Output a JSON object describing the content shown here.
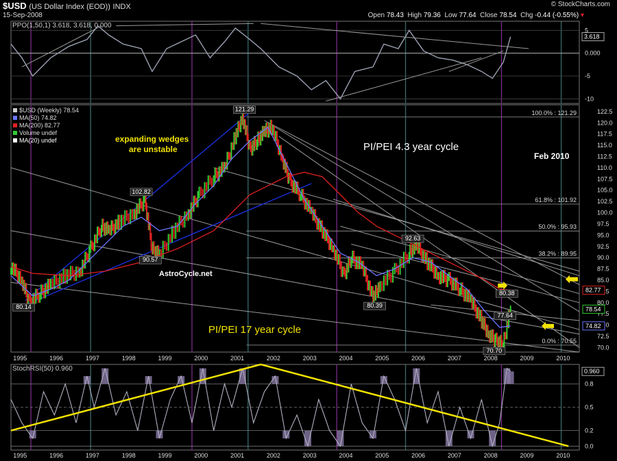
{
  "header": {
    "symbol": "$USD",
    "name": "(US Dollar Index (EOD))",
    "exchange": "INDX",
    "date": "15-Sep-2008",
    "brand": "© StockCharts.com",
    "open_label": "Open",
    "open": "78.43",
    "high_label": "High",
    "high": "79.36",
    "low_label": "Low",
    "low": "77.64",
    "close_label": "Close",
    "close": "78.54",
    "chg_label": "Chg",
    "chg": "-0.44 (-0.55%)"
  },
  "colors": {
    "up": "#33cc33",
    "down": "#dd2222",
    "ma50": "#6a75ff",
    "ma200": "#e02020",
    "trend": "#9a9a9a",
    "wedge": "#1a2fd8",
    "yellow": "#f2e200",
    "cycle_teal": "#3a6a6a",
    "cycle_purple": "#7a2a8a"
  },
  "chart_data": [
    {
      "type": "line",
      "panel": "PPO",
      "legend": "PPO(1,50,1) 3.618, 3.618, 0.000",
      "y_ticks": [
        "5",
        "0.000",
        "-5",
        "-10"
      ],
      "current_label": "3.618",
      "ylim": [
        -11,
        7
      ],
      "series": [
        {
          "name": "PPO(1,50,1)",
          "x": [
            1994.9,
            1995.2,
            1995.5,
            1996.0,
            1996.5,
            1997.0,
            1997.3,
            1997.6,
            1998.0,
            1998.5,
            1998.8,
            1999.2,
            1999.6,
            2000.0,
            2000.4,
            2000.8,
            2001.1,
            2001.5,
            2001.8,
            2002.3,
            2002.8,
            2003.2,
            2003.6,
            2004.0,
            2004.4,
            2004.9,
            2005.2,
            2005.6,
            2005.9,
            2006.3,
            2006.7,
            2007.1,
            2007.5,
            2007.9,
            2008.2,
            2008.5,
            2008.7
          ],
          "values": [
            2.0,
            -1.0,
            -5.0,
            -1.0,
            1.5,
            3.0,
            6.0,
            4.0,
            2.0,
            1.0,
            -4.0,
            1.0,
            2.5,
            4.0,
            -1.0,
            2.5,
            5.5,
            3.0,
            1.0,
            -3.0,
            -5.0,
            -8.0,
            -6.0,
            -10.0,
            -4.0,
            -3.0,
            2.0,
            1.0,
            5.0,
            0.5,
            -1.0,
            -1.5,
            -2.5,
            -4.0,
            -5.5,
            -2.0,
            3.6
          ]
        }
      ]
    },
    {
      "type": "line",
      "panel": "Price",
      "legend": [
        "$USD (Weekly) 78.54",
        "MA(50) 74.82",
        "MA(200) 82.77",
        "Volume undef",
        "MA(20) undef"
      ],
      "x_ticks": [
        "1995",
        "1996",
        "1997",
        "1998",
        "1999",
        "2000",
        "2001",
        "2002",
        "2003",
        "2004",
        "2005",
        "2006",
        "2007",
        "2008",
        "2009",
        "2010"
      ],
      "y_ticks": [
        "122.5",
        "120.0",
        "117.5",
        "115.0",
        "112.5",
        "110.0",
        "107.5",
        "105.0",
        "102.5",
        "100.0",
        "97.5",
        "95.0",
        "92.5",
        "90.0",
        "87.5",
        "85.0",
        "82.5",
        "80.0",
        "77.5",
        "75.0",
        "72.5",
        "70.0"
      ],
      "ylim": [
        69,
        124
      ],
      "series": [
        {
          "name": "$USD (Weekly)",
          "x": [
            1994.9,
            1995.2,
            1995.4,
            1995.7,
            1996.0,
            1996.4,
            1996.8,
            1997.1,
            1997.4,
            1997.6,
            1997.9,
            1998.3,
            1998.6,
            1998.8,
            1999.0,
            1999.4,
            1999.8,
            2000.1,
            2000.5,
            2000.8,
            2001.1,
            2001.3,
            2001.5,
            2001.7,
            2001.9,
            2002.1,
            2002.4,
            2002.6,
            2002.9,
            2003.2,
            2003.5,
            2003.8,
            2004.1,
            2004.3,
            2004.6,
            2004.9,
            2005.1,
            2005.5,
            2005.9,
            2006.1,
            2006.4,
            2006.7,
            2007.0,
            2007.3,
            2007.6,
            2007.9,
            2008.1,
            2008.3,
            2008.5,
            2008.7
          ],
          "values": [
            88,
            85,
            80.1,
            82,
            84,
            86,
            87,
            92,
            97,
            96,
            98,
            100,
            102.8,
            92,
            90.6,
            96,
            100,
            104,
            108,
            110,
            117,
            121.3,
            114,
            116,
            118,
            119,
            112,
            107,
            104,
            100,
            96,
            92,
            86,
            90,
            88,
            81,
            84,
            87,
            91,
            92.6,
            89,
            86,
            85,
            83,
            80.5,
            76,
            73,
            71.5,
            70.7,
            78.54
          ]
        },
        {
          "name": "MA(50)",
          "x": [
            1994.9,
            1995.5,
            1996.0,
            1996.5,
            1997.0,
            1997.5,
            1998.0,
            1998.5,
            1999.0,
            1999.5,
            2000.0,
            2000.5,
            2001.0,
            2001.5,
            2002.0,
            2002.5,
            2003.0,
            2003.5,
            2004.0,
            2004.5,
            2005.0,
            2005.5,
            2006.0,
            2006.5,
            2007.0,
            2007.5,
            2008.0,
            2008.4,
            2008.7
          ],
          "values": [
            86,
            81.5,
            83,
            85,
            89,
            93,
            97,
            99,
            96,
            97,
            102,
            106,
            112,
            116,
            119,
            111,
            103,
            97,
            91,
            89,
            86,
            87.5,
            90,
            89,
            86,
            83,
            78,
            74.5,
            74.82
          ]
        },
        {
          "name": "MA(200)",
          "x": [
            1994.9,
            1995.5,
            1996.5,
            1997.5,
            1998.5,
            1999.5,
            2000.5,
            2001.0,
            2001.5,
            2002.0,
            2002.5,
            2003.0,
            2003.5,
            2004.0,
            2004.5,
            2005.0,
            2005.5,
            2006.0,
            2006.5,
            2007.0,
            2007.5,
            2008.0,
            2008.4,
            2008.7
          ],
          "values": [
            88,
            86.5,
            86,
            87,
            89,
            92,
            96,
            100,
            104,
            106,
            108,
            109,
            108,
            104,
            100,
            97,
            95,
            93,
            91,
            89,
            87,
            85,
            83,
            82.77
          ]
        }
      ],
      "labels": [
        "121.29",
        "102.82",
        "90.57",
        "80.14",
        "80.39",
        "92.63",
        "80.38",
        "77.64",
        "70.70"
      ],
      "levels": [
        {
          "label": "100.0% : 121.29",
          "value": 121.29
        },
        {
          "label": "61.8% : 101.92",
          "value": 101.92
        },
        {
          "label": "50.0% : 95.93",
          "value": 95.93
        },
        {
          "label": "38.2% : 89.95",
          "value": 89.95
        },
        {
          "label": "0.0% : 70.55",
          "value": 70.55
        }
      ],
      "current_tags": [
        "82.77",
        "78.54",
        "74.82"
      ],
      "annotations": {
        "wedge_note_1": "expanding wedges",
        "wedge_note_2": "are unstable",
        "cycle_43": "PI/PEI 4.3 year cycle",
        "target": "Feb 2010",
        "site": "AstroCycle.net",
        "cycle_17": "PI/PEI 17 year cycle"
      }
    },
    {
      "type": "line",
      "panel": "StochRSI",
      "legend": "StochRSI(50) 0.960",
      "y_ticks": [
        "0.8",
        "0.5",
        "0.2",
        "0.0"
      ],
      "current_label": "0.960",
      "ylim": [
        0,
        1
      ],
      "series": [
        {
          "name": "StochRSI(50)",
          "x": [
            1994.9,
            1995.2,
            1995.5,
            1995.8,
            1996.1,
            1996.4,
            1996.7,
            1997.0,
            1997.2,
            1997.5,
            1997.8,
            1998.1,
            1998.4,
            1998.7,
            1999.0,
            1999.3,
            1999.6,
            1999.9,
            2000.2,
            2000.5,
            2000.8,
            2001.0,
            2001.3,
            2001.6,
            2001.9,
            2002.2,
            2002.5,
            2002.8,
            2003.1,
            2003.4,
            2003.7,
            2004.0,
            2004.3,
            2004.6,
            2004.9,
            2005.2,
            2005.5,
            2005.8,
            2006.1,
            2006.4,
            2006.7,
            2007.0,
            2007.3,
            2007.6,
            2007.9,
            2008.2,
            2008.4,
            2008.6,
            2008.7
          ],
          "values": [
            0.6,
            0.3,
            0.1,
            0.7,
            0.4,
            0.8,
            0.3,
            0.9,
            0.5,
            1.0,
            0.4,
            0.7,
            0.2,
            0.9,
            0.1,
            0.6,
            0.9,
            0.3,
            1.0,
            0.2,
            0.8,
            0.5,
            1.0,
            0.3,
            0.7,
            0.9,
            0.1,
            0.4,
            0.0,
            0.6,
            0.2,
            0.0,
            0.8,
            0.3,
            0.1,
            0.9,
            0.6,
            0.2,
            1.0,
            0.3,
            0.7,
            0.0,
            0.5,
            0.1,
            0.6,
            0.0,
            0.3,
            1.0,
            0.96
          ]
        }
      ],
      "x_ticks": [
        "1995",
        "1996",
        "1997",
        "1998",
        "1999",
        "2000",
        "2001",
        "2002",
        "2003",
        "2004",
        "2005",
        "2006",
        "2007",
        "2008",
        "2009",
        "2010"
      ]
    }
  ]
}
